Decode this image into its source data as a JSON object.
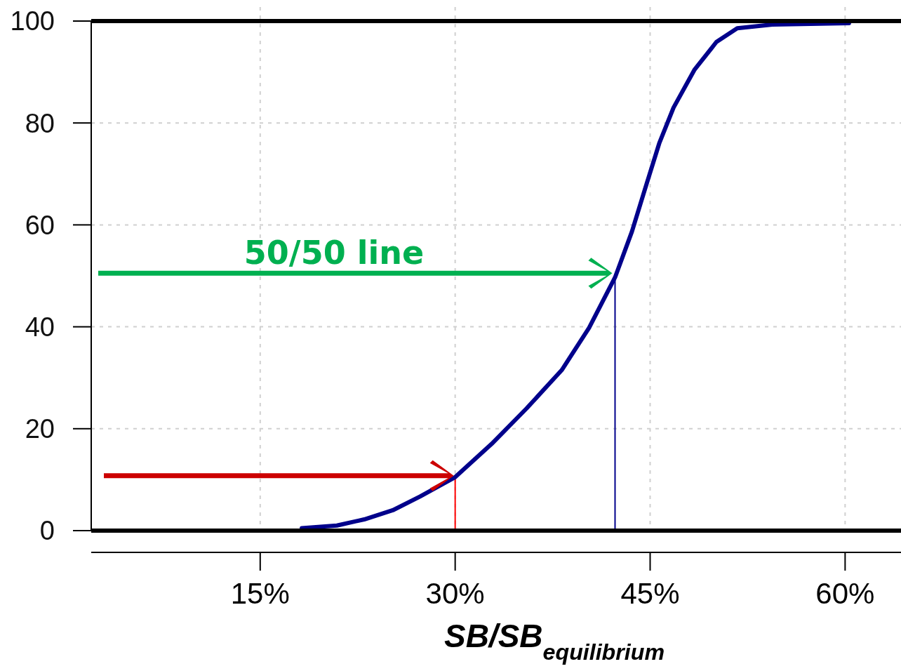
{
  "chart_data": {
    "type": "line",
    "xlabel": "SB/SB$_{equilibrium}$",
    "series": [
      {
        "color": "#00008b",
        "x": [
          18.2,
          20.9,
          23.0,
          25.2,
          27.3,
          30.0,
          32.8,
          35.5,
          38.2,
          40.3,
          42.3,
          43.6,
          44.6,
          45.7,
          46.8,
          48.4,
          50.1,
          51.7,
          54.4,
          60.3
        ],
        "values": [
          0.5,
          1,
          2.2,
          4,
          6.7,
          10.5,
          17,
          24,
          31.5,
          39.8,
          49.7,
          58.7,
          67,
          76,
          83,
          90.4,
          95.9,
          98.6,
          99.3,
          99.6
        ]
      }
    ],
    "xlim": [
      2,
      64.3
    ],
    "xticks": [
      {
        "value": 15,
        "label": "15%"
      },
      {
        "value": 30,
        "label": "30%"
      },
      {
        "value": 45,
        "label": "45%"
      },
      {
        "value": 60,
        "label": "60%"
      }
    ],
    "ylim": [
      0,
      100
    ],
    "yticks": [
      0,
      20,
      40,
      60,
      80,
      100
    ],
    "grid": true,
    "marker": "none",
    "line_style": "solid",
    "ref_lines": [
      {
        "axis": "y",
        "value": 0,
        "color": "#000000"
      },
      {
        "axis": "y",
        "value": 100,
        "color": "#000000"
      },
      {
        "axis": "x",
        "value": 30,
        "color": "#ff0000"
      },
      {
        "axis": "x",
        "value": 42.3,
        "color": "#00008b"
      }
    ],
    "annotations": [
      "50/50 line"
    ]
  }
}
